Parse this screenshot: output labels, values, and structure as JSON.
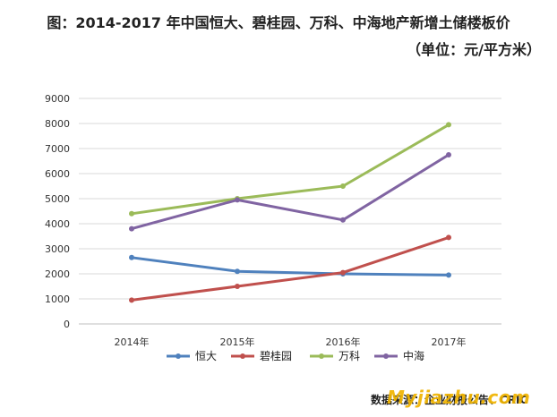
{
  "header": {
    "title_line1": "图：2014-2017 年中国恒大、碧桂园、万科、中海地产新增土储楼板价",
    "title_line2": "（单位：元/平方米）"
  },
  "footer": {
    "source_text": "数据来源：企业财报公告、CRIC",
    "watermark_text": "Myjiazhu.com"
  },
  "chart_data": {
    "type": "line",
    "categories": [
      "2014年",
      "2015年",
      "2016年",
      "2017年"
    ],
    "ylim": [
      0,
      9000
    ],
    "yticks": [
      0,
      1000,
      2000,
      3000,
      4000,
      5000,
      6000,
      7000,
      8000,
      9000
    ],
    "grid": true,
    "legend_position": "bottom",
    "series": [
      {
        "name": "恒大",
        "color": "#4f81bd",
        "values": [
          2650,
          2100,
          2000,
          1950
        ]
      },
      {
        "name": "碧桂园",
        "color": "#c0504d",
        "values": [
          950,
          1500,
          2050,
          3450
        ]
      },
      {
        "name": "万科",
        "color": "#9bbb59",
        "values": [
          4400,
          5000,
          5500,
          7950
        ]
      },
      {
        "name": "中海",
        "color": "#8064a2",
        "values": [
          3800,
          4950,
          4150,
          6750
        ]
      }
    ]
  }
}
